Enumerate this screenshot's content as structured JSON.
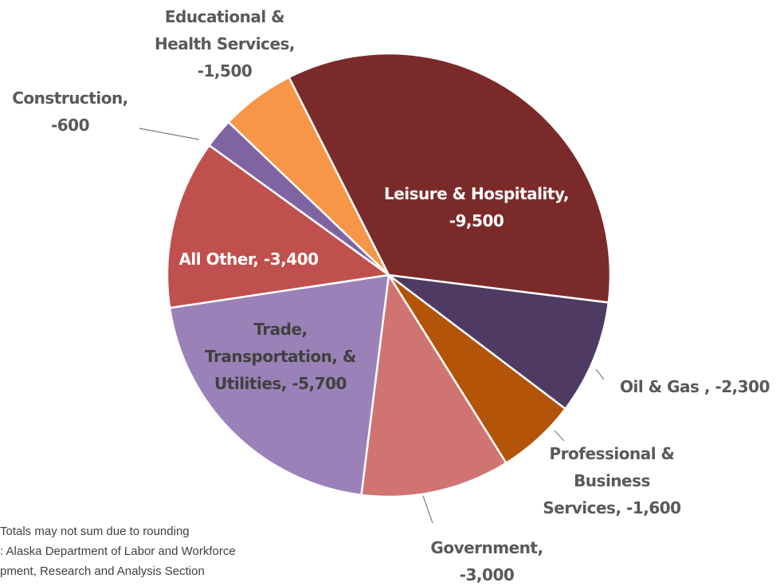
{
  "chart_data": {
    "type": "pie",
    "categories": [
      "Leisure & Hospitality,",
      "Oil & Gas ,",
      "Professional & Business Services,",
      "Government,",
      "Trade, Transportation, & Utilities,",
      "All Other,",
      "Construction,",
      "Educational & Health Services,"
    ],
    "values": [
      -9500,
      -2300,
      -1600,
      -3000,
      -5700,
      -3400,
      -600,
      -1500
    ],
    "value_labels": [
      "-9,500",
      "-2,300",
      "-1,600",
      "-3,000",
      "-5,700",
      "-3,400",
      "-600",
      "-1,500"
    ],
    "colors": [
      "#7b2a2a",
      "#4e3a62",
      "#b35409",
      "#d07472",
      "#9a82b8",
      "#c0504d",
      "#8064a2",
      "#f79646"
    ],
    "notes": [
      "Totals may not sum due to rounding",
      ": Alaska Department of Labor and Workforce",
      "pment, Research and Analysis Section"
    ]
  }
}
